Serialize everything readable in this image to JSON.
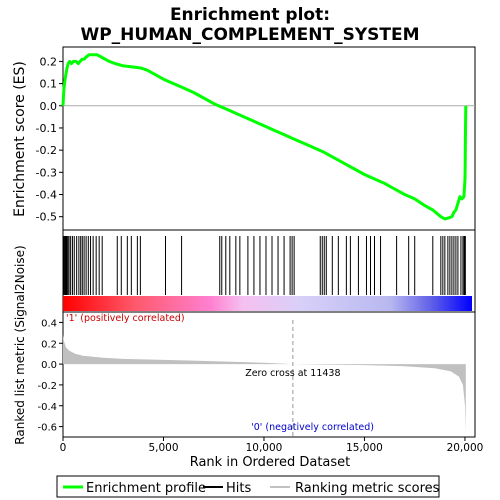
{
  "chart_data": {
    "type": "line",
    "title_line1": "Enrichment plot:",
    "title_line2": "WP_HUMAN_COMPLEMENT_SYSTEM",
    "es_panel": {
      "ylabel": "Enrichment score (ES)",
      "ylim": [
        -0.56,
        0.265
      ],
      "yticks": [
        0.2,
        0.1,
        0.0,
        -0.1,
        -0.2,
        -0.3,
        -0.4,
        -0.5
      ],
      "ytick_labels": [
        "0.2",
        "0.1",
        "0.0",
        "-0.1",
        "-0.2",
        "-0.3",
        "-0.4",
        "-0.5"
      ],
      "line_color": "#00ff00",
      "grid": false,
      "points": [
        [
          0,
          0.0
        ],
        [
          40,
          0.07
        ],
        [
          90,
          0.11
        ],
        [
          140,
          0.14
        ],
        [
          200,
          0.17
        ],
        [
          260,
          0.19
        ],
        [
          330,
          0.2
        ],
        [
          420,
          0.19
        ],
        [
          520,
          0.2
        ],
        [
          640,
          0.2
        ],
        [
          760,
          0.19
        ],
        [
          850,
          0.2
        ],
        [
          950,
          0.21
        ],
        [
          1050,
          0.21
        ],
        [
          1150,
          0.22
        ],
        [
          1300,
          0.23
        ],
        [
          1500,
          0.23
        ],
        [
          1700,
          0.23
        ],
        [
          1900,
          0.22
        ],
        [
          2100,
          0.21
        ],
        [
          2300,
          0.2
        ],
        [
          2600,
          0.19
        ],
        [
          3000,
          0.18
        ],
        [
          3500,
          0.175
        ],
        [
          3900,
          0.17
        ],
        [
          4200,
          0.16
        ],
        [
          4600,
          0.14
        ],
        [
          5000,
          0.12
        ],
        [
          5500,
          0.1
        ],
        [
          6000,
          0.08
        ],
        [
          6500,
          0.06
        ],
        [
          7000,
          0.035
        ],
        [
          7500,
          0.01
        ],
        [
          8000,
          -0.01
        ],
        [
          8500,
          -0.03
        ],
        [
          9000,
          -0.05
        ],
        [
          9500,
          -0.07
        ],
        [
          10000,
          -0.09
        ],
        [
          10500,
          -0.11
        ],
        [
          11000,
          -0.13
        ],
        [
          11500,
          -0.15
        ],
        [
          12000,
          -0.17
        ],
        [
          12500,
          -0.19
        ],
        [
          13000,
          -0.21
        ],
        [
          13500,
          -0.235
        ],
        [
          14000,
          -0.26
        ],
        [
          14500,
          -0.285
        ],
        [
          15000,
          -0.31
        ],
        [
          15500,
          -0.33
        ],
        [
          16000,
          -0.35
        ],
        [
          16500,
          -0.375
        ],
        [
          17000,
          -0.4
        ],
        [
          17500,
          -0.42
        ],
        [
          18000,
          -0.45
        ],
        [
          18400,
          -0.47
        ],
        [
          18800,
          -0.5
        ],
        [
          19000,
          -0.51
        ],
        [
          19200,
          -0.505
        ],
        [
          19350,
          -0.5
        ],
        [
          19450,
          -0.48
        ],
        [
          19550,
          -0.47
        ],
        [
          19650,
          -0.44
        ],
        [
          19750,
          -0.41
        ],
        [
          19850,
          -0.42
        ],
        [
          19950,
          -0.41
        ],
        [
          20000,
          -0.33
        ],
        [
          20010,
          -0.26
        ],
        [
          20020,
          -0.15
        ],
        [
          20030,
          -0.07
        ],
        [
          20040,
          0.0
        ]
      ]
    },
    "hits_panel": {
      "hit_ranks": [
        30,
        70,
        110,
        150,
        190,
        240,
        300,
        380,
        470,
        560,
        680,
        790,
        880,
        960,
        1050,
        1150,
        1260,
        1370,
        1500,
        1650,
        1800,
        1950,
        2700,
        2900,
        3200,
        3400,
        3700,
        3850,
        5100,
        5900,
        7800,
        7900,
        8100,
        8300,
        8600,
        8800,
        9200,
        9500,
        9800,
        10100,
        10400,
        10700,
        11000,
        11300,
        11400,
        11500,
        12800,
        12900,
        13000,
        13100,
        13400,
        13700,
        14100,
        14300,
        14700,
        15100,
        15300,
        15500,
        15800,
        16600,
        17200,
        17500,
        18400,
        18800,
        18900,
        19000,
        19150,
        19250,
        19350,
        19450,
        19550,
        19650,
        19800,
        19900,
        19960,
        20000,
        20020
      ]
    },
    "metric_panel": {
      "ylabel": "Ranked list metric (Signal2Noise)",
      "xlabel": "Rank in Ordered Dataset",
      "ylim": [
        -0.7,
        0.5
      ],
      "yticks": [
        0.4,
        0.2,
        0.0,
        -0.2,
        -0.4,
        -0.6
      ],
      "ytick_labels": [
        "0.4",
        "0.2",
        "0.0",
        "-0.2",
        "-0.4",
        "-0.6"
      ],
      "fill_color": "#c0c0c0",
      "points": [
        [
          0,
          0.28
        ],
        [
          50,
          0.22
        ],
        [
          150,
          0.16
        ],
        [
          300,
          0.13
        ],
        [
          600,
          0.1
        ],
        [
          1000,
          0.08
        ],
        [
          2000,
          0.06
        ],
        [
          3000,
          0.05
        ],
        [
          4000,
          0.045
        ],
        [
          6000,
          0.035
        ],
        [
          8000,
          0.025
        ],
        [
          10000,
          0.012
        ],
        [
          11438,
          0.0
        ],
        [
          13000,
          -0.005
        ],
        [
          15000,
          -0.01
        ],
        [
          17000,
          -0.02
        ],
        [
          18500,
          -0.04
        ],
        [
          19300,
          -0.07
        ],
        [
          19700,
          -0.12
        ],
        [
          19900,
          -0.2
        ],
        [
          20000,
          -0.4
        ],
        [
          20040,
          -0.65
        ]
      ],
      "positive_label": "'1' (positively correlated)",
      "negative_label": "'0' (negatively correlated)",
      "zero_cross_label": "Zero cross at 11438",
      "zero_cross_rank": 11438
    },
    "x_axis": {
      "xlim": [
        0,
        20500
      ],
      "xticks": [
        0,
        5000,
        10000,
        15000,
        20000
      ],
      "xtick_labels": [
        "0",
        "5,000",
        "10,000",
        "15,000",
        "20,000"
      ]
    },
    "legend": {
      "placement": "bottom",
      "entries": [
        {
          "label": "Enrichment profile",
          "color": "#00ff00",
          "style": "thick-line"
        },
        {
          "label": "Hits",
          "color": "#000000",
          "style": "line"
        },
        {
          "label": "Ranking metric scores",
          "color": "#c0c0c0",
          "style": "line"
        }
      ]
    }
  }
}
